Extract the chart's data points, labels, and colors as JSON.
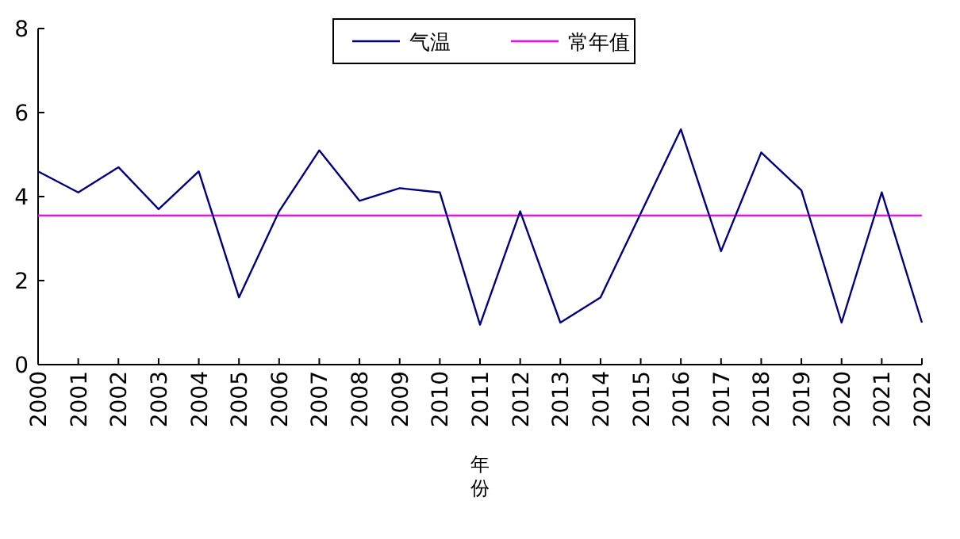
{
  "chart_data": {
    "type": "line",
    "xlabel": "年份",
    "categories": [
      "2000",
      "2001",
      "2002",
      "2003",
      "2004",
      "2005",
      "2006",
      "2007",
      "2008",
      "2009",
      "2010",
      "2011",
      "2012",
      "2013",
      "2014",
      "2015",
      "2016",
      "2017",
      "2018",
      "2019",
      "2020",
      "2021",
      "2022"
    ],
    "series": [
      {
        "name": "气温",
        "color": "#000080",
        "values": [
          4.6,
          4.1,
          4.7,
          3.7,
          4.6,
          1.6,
          3.65,
          5.1,
          3.9,
          4.2,
          4.1,
          0.95,
          3.65,
          1.0,
          1.6,
          3.6,
          5.6,
          2.7,
          5.05,
          4.15,
          1.0,
          4.1,
          1.0
        ]
      }
    ],
    "ref_lines": [
      {
        "axis": "y",
        "value": 3.55,
        "label": "常年值",
        "color": "#ff00ff"
      }
    ],
    "ylim": [
      0,
      8
    ],
    "yticks": [
      0,
      2,
      4,
      6,
      8
    ],
    "grid": false,
    "legend": "top",
    "marker": "none",
    "line_style": "solid"
  }
}
